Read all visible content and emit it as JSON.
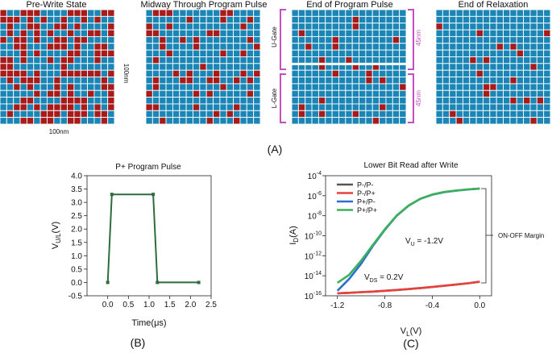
{
  "panel_a": {
    "titles": [
      "Pre-Write State",
      "Midway Through Program Pulse",
      "End of Program Pulse",
      "End of Relaxation"
    ],
    "dim_vertical": "100nm",
    "dim_horizontal": "100nm",
    "gate_upper": "U-Gate",
    "gate_lower": "L-Gate",
    "thickness_upper": "45nm",
    "thickness_lower": "45nm",
    "grid_rows": 17,
    "grid_cols": 17,
    "cell_colors": {
      "background": "#1b86b5",
      "polarized": "#a81b1b",
      "gridline": "#ffffff"
    },
    "red_fraction": [
      0.42,
      0.2,
      0.08,
      0.06
    ],
    "label": "(A)"
  },
  "chart_data": [
    {
      "type": "line",
      "title": "P+ Program Pulse",
      "xlabel": "Time(μs)",
      "ylabel_main": "V",
      "ylabel_sub": "U/L",
      "ylabel_unit": "(V)",
      "x": [
        0.0,
        0.1,
        1.1,
        1.2,
        2.2
      ],
      "y": [
        0.0,
        3.3,
        3.3,
        0.0,
        0.0
      ],
      "xlim": [
        -0.5,
        2.5
      ],
      "ylim": [
        -0.5,
        4.0
      ],
      "xticks": [
        "0.0",
        "0.5",
        "1.0",
        "1.5",
        "2.0",
        "2.5"
      ],
      "yticks": [
        "-0.5",
        "0.0",
        "0.5",
        "1.0",
        "1.5",
        "2.0",
        "2.5",
        "3.0",
        "3.5",
        "4.0"
      ],
      "color": "#2e6b3e",
      "label": "(B)"
    },
    {
      "type": "line",
      "title": "Lower Bit Read after Write",
      "xlabel_main": "V",
      "xlabel_sub": "L",
      "xlabel_unit": "(V)",
      "ylabel_main": "I",
      "ylabel_sub": "D",
      "ylabel_unit": "(A)",
      "scale_y": "log",
      "xlim": [
        -1.3,
        0.1
      ],
      "ylim_exp": [
        -16,
        -4
      ],
      "xticks": [
        "-1.2",
        "-0.8",
        "-0.4",
        "0.0"
      ],
      "ytick_base": "10",
      "ytick_exps": [
        "-16",
        "-14",
        "-12",
        "-10",
        "-8",
        "-6",
        "-4"
      ],
      "series": [
        {
          "name": "P-/P-",
          "color": "#555555",
          "x": [
            -1.2,
            -1.1,
            -1.0,
            -0.9,
            -0.8,
            -0.7,
            -0.6,
            -0.5,
            -0.4,
            -0.3,
            -0.2,
            -0.1,
            0.0
          ],
          "log10_y": [
            -15.75,
            -15.7,
            -15.64,
            -15.58,
            -15.5,
            -15.42,
            -15.33,
            -15.23,
            -15.12,
            -15.0,
            -14.88,
            -14.75,
            -14.6
          ]
        },
        {
          "name": "P-/P+",
          "color": "#e8413c",
          "x": [
            -1.2,
            -1.1,
            -1.0,
            -0.9,
            -0.8,
            -0.7,
            -0.6,
            -0.5,
            -0.4,
            -0.3,
            -0.2,
            -0.1,
            0.0
          ],
          "log10_y": [
            -15.75,
            -15.7,
            -15.64,
            -15.58,
            -15.5,
            -15.42,
            -15.33,
            -15.23,
            -15.12,
            -15.0,
            -14.88,
            -14.75,
            -14.6
          ]
        },
        {
          "name": "P+/P-",
          "color": "#2b6fd1",
          "x": [
            -1.2,
            -1.1,
            -1.0,
            -0.9,
            -0.8,
            -0.7,
            -0.6,
            -0.5,
            -0.4,
            -0.3,
            -0.2,
            -0.1,
            0.0
          ],
          "log10_y": [
            -15.5,
            -14.3,
            -12.8,
            -11.0,
            -9.4,
            -8.0,
            -7.0,
            -6.3,
            -5.9,
            -5.65,
            -5.5,
            -5.38,
            -5.3
          ]
        },
        {
          "name": "P+/P+",
          "color": "#3cb05a",
          "x": [
            -1.2,
            -1.1,
            -1.0,
            -0.9,
            -0.8,
            -0.7,
            -0.6,
            -0.5,
            -0.4,
            -0.3,
            -0.2,
            -0.1,
            0.0
          ],
          "log10_y": [
            -14.7,
            -13.9,
            -12.5,
            -10.9,
            -9.35,
            -7.98,
            -6.98,
            -6.3,
            -5.88,
            -5.63,
            -5.48,
            -5.37,
            -5.28
          ]
        }
      ],
      "annotations": {
        "vu_main": "V",
        "vu_sub": "U",
        "vu_value": " = -1.2V",
        "vds_main": "V",
        "vds_sub": "DS",
        "vds_value": " = 0.2V",
        "margin": "ON-OFF Margin"
      },
      "label": "(C)"
    }
  ]
}
